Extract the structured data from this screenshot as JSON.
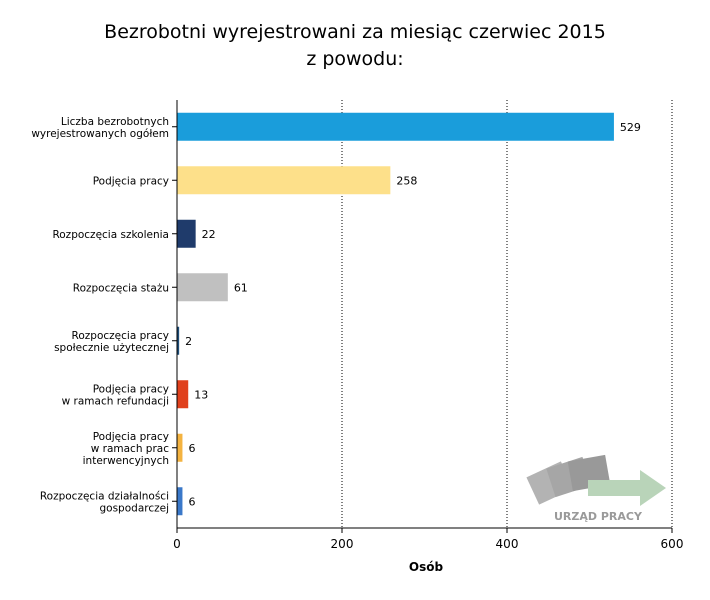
{
  "chart_data": {
    "type": "bar",
    "orientation": "horizontal",
    "title": [
      "Bezrobotni wyrejestrowani za miesiąc czerwiec 2015",
      "z powodu:"
    ],
    "categories": [
      [
        "Liczba bezrobotnych",
        "wyrejestrowanych ogółem"
      ],
      [
        "Podjęcia pracy"
      ],
      [
        "Rozpoczęcia szkolenia"
      ],
      [
        "Rozpoczęcia stażu"
      ],
      [
        "Rozpoczęcia pracy",
        "społecznie użytecznej"
      ],
      [
        "Podjęcia pracy",
        "w ramach refundacji"
      ],
      [
        "Podjęcia pracy",
        "w ramach prac",
        "interwencyjnych"
      ],
      [
        "Rozpoczęcia działalności",
        "gospodarczej"
      ]
    ],
    "values": [
      529,
      258,
      22,
      61,
      2,
      13,
      6,
      6
    ],
    "colors": [
      "#1a9ddb",
      "#fde08a",
      "#1f3b6b",
      "#c0c0c0",
      "#1f4e79",
      "#e0401c",
      "#f4b340",
      "#3a78c9"
    ],
    "xlabel": "Osób",
    "xlim": [
      0,
      600
    ],
    "xticks": [
      0,
      200,
      400,
      600
    ],
    "grid": true,
    "data_labels": true
  },
  "logo": {
    "text": "URZĄD PRACY",
    "name": "urzad-pracy-logo"
  }
}
